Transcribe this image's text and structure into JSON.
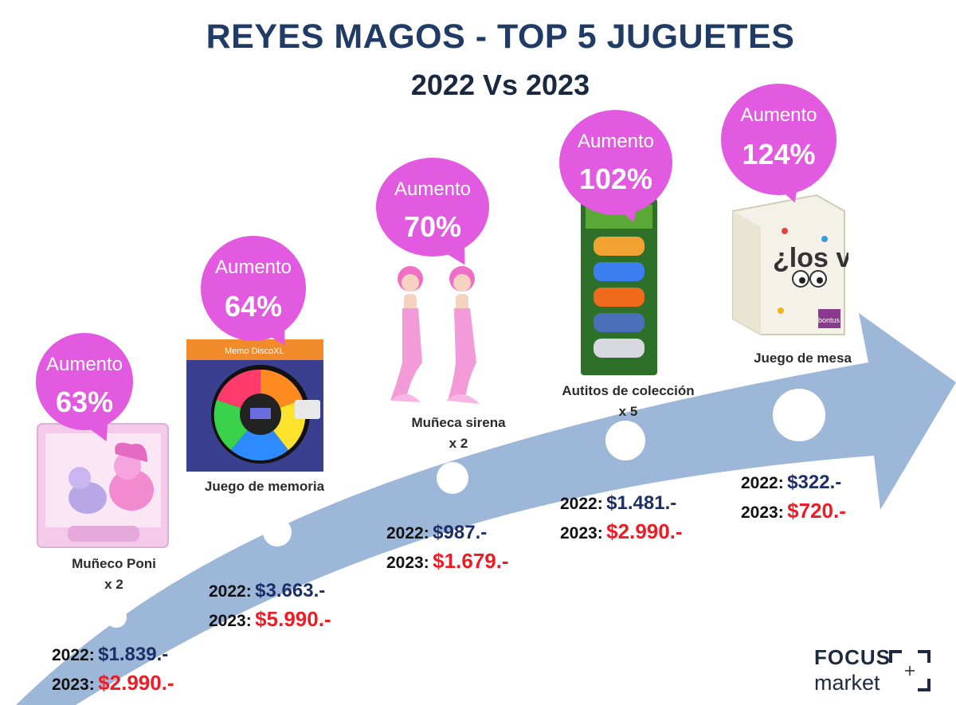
{
  "header": {
    "title": "REYES MAGOS - TOP 5 JUGUETES",
    "subtitle": "2022 Vs 2023"
  },
  "items": [
    {
      "product": "Muñeco Poni",
      "qty": "x 2",
      "bubble_label": "Aumento",
      "increase": "63%",
      "year_2022": "2022:",
      "price_2022": "$1.839.-",
      "year_2023": "2023:",
      "price_2023": "$2.990.-"
    },
    {
      "product": "Juego de memoria",
      "qty": "",
      "bubble_label": "Aumento",
      "increase": "64%",
      "year_2022": "2022:",
      "price_2022": "$3.663.-",
      "year_2023": "2023:",
      "price_2023": "$5.990.-"
    },
    {
      "product": "Muñeca sirena",
      "qty": "x 2",
      "bubble_label": "Aumento",
      "increase": "70%",
      "year_2022": "2022:",
      "price_2022": "$987.-",
      "year_2023": "2023:",
      "price_2023": "$1.679.-"
    },
    {
      "product": "Autitos de colección",
      "qty": "x 5",
      "bubble_label": "Aumento",
      "increase": "102%",
      "year_2022": "2022:",
      "price_2022": "$1.481.-",
      "year_2023": "2023:",
      "price_2023": "$2.990.-"
    },
    {
      "product": "Juego de mesa",
      "qty": "",
      "bubble_label": "Aumento",
      "increase": "124%",
      "year_2022": "2022:",
      "price_2022": "$322.-",
      "year_2023": "2023:",
      "price_2023": "$720.-"
    }
  ],
  "product_art": {
    "memory_game_box": "Memo DiscoXL",
    "board_game_box": "¿los ves?",
    "board_game_brand": "bontus"
  },
  "logo": {
    "line1": "FOCUS",
    "line2": "market"
  },
  "colors": {
    "bubble": "#e25ae0",
    "arrow": "#9db7d8",
    "title": "#1f3b66",
    "price_2022": "#1c2f66",
    "price_2023": "#ee1c25"
  }
}
